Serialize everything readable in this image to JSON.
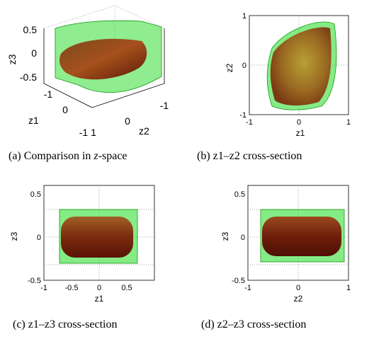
{
  "figure": {
    "panels": [
      {
        "id": "a",
        "caption": "(a) Comparison in z-space",
        "caption_prefix": "(a) Comparison in ",
        "caption_var": "z",
        "caption_suffix": "-space",
        "zlabel": "z3",
        "xlabel": "z1",
        "ylabel": "z2",
        "z_ticks": [
          "0.5",
          "0",
          "-0.5"
        ],
        "x_ticks": [
          "-1",
          "0",
          "1"
        ],
        "y_ticks": [
          "-1",
          "0",
          "1"
        ]
      },
      {
        "id": "b",
        "caption": "(b) z1–z2 cross-section",
        "xlabel": "z1",
        "ylabel": "z2",
        "x_ticks": [
          "-1",
          "0",
          "1"
        ],
        "y_ticks": [
          "1",
          "0",
          "-1"
        ]
      },
      {
        "id": "c",
        "caption": "(c) z1–z3 cross-section",
        "xlabel": "z1",
        "ylabel": "z3",
        "x_ticks": [
          "-1",
          "-0.5",
          "0",
          "0.5"
        ],
        "y_ticks": [
          "0.5",
          "0",
          "-0.5"
        ]
      },
      {
        "id": "d",
        "caption": "(d) z2–z3 cross-section",
        "xlabel": "z2",
        "ylabel": "z3",
        "x_ticks": [
          "-1",
          "0",
          "1"
        ],
        "y_ticks": [
          "0.5",
          "0",
          "-0.5"
        ]
      }
    ],
    "colors": {
      "outer_region": "#33dd33",
      "inner_region": "#8a3a10",
      "axis": "#000000",
      "grid": "#888888"
    }
  }
}
